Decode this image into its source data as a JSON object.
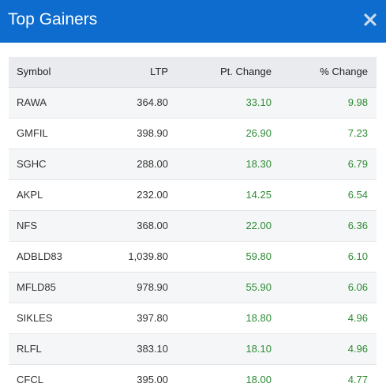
{
  "header": {
    "title": "Top Gainers",
    "close_icon": "close-icon",
    "background_color": "#0d6ccd"
  },
  "table": {
    "columns": [
      "Symbol",
      "LTP",
      "Pt. Change",
      "% Change"
    ],
    "rows": [
      {
        "symbol": "RAWA",
        "ltp": "364.80",
        "pt_change": "33.10",
        "pct_change": "9.98"
      },
      {
        "symbol": "GMFIL",
        "ltp": "398.90",
        "pt_change": "26.90",
        "pct_change": "7.23"
      },
      {
        "symbol": "SGHC",
        "ltp": "288.00",
        "pt_change": "18.30",
        "pct_change": "6.79"
      },
      {
        "symbol": "AKPL",
        "ltp": "232.00",
        "pt_change": "14.25",
        "pct_change": "6.54"
      },
      {
        "symbol": "NFS",
        "ltp": "368.00",
        "pt_change": "22.00",
        "pct_change": "6.36"
      },
      {
        "symbol": "ADBLD83",
        "ltp": "1,039.80",
        "pt_change": "59.80",
        "pct_change": "6.10"
      },
      {
        "symbol": "MFLD85",
        "ltp": "978.90",
        "pt_change": "55.90",
        "pct_change": "6.06"
      },
      {
        "symbol": "SIKLES",
        "ltp": "397.80",
        "pt_change": "18.80",
        "pct_change": "4.96"
      },
      {
        "symbol": "RLFL",
        "ltp": "383.10",
        "pt_change": "18.10",
        "pct_change": "4.96"
      },
      {
        "symbol": "CFCL",
        "ltp": "395.00",
        "pt_change": "18.00",
        "pct_change": "4.77"
      }
    ],
    "gain_color": "#2e8b34"
  }
}
